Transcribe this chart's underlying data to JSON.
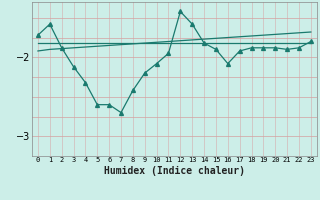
{
  "xlabel": "Humidex (Indice chaleur)",
  "x": [
    0,
    1,
    2,
    3,
    4,
    5,
    6,
    7,
    8,
    9,
    10,
    11,
    12,
    13,
    14,
    15,
    16,
    17,
    18,
    19,
    20,
    21,
    22,
    23
  ],
  "y_line1": [
    -1.72,
    -1.58,
    -1.88,
    -2.12,
    -2.32,
    -2.6,
    -2.6,
    -2.7,
    -2.42,
    -2.2,
    -2.08,
    -1.95,
    -1.42,
    -1.58,
    -1.82,
    -1.9,
    -2.08,
    -1.92,
    -1.88,
    -1.88,
    -1.88,
    -1.9,
    -1.88,
    -1.8
  ],
  "y_line2": [
    -1.82,
    -1.82,
    -1.82,
    -1.82,
    -1.82,
    -1.82,
    -1.82,
    -1.82,
    -1.82,
    -1.82,
    -1.82,
    -1.82,
    -1.82,
    -1.82,
    -1.82,
    -1.82,
    -1.82,
    -1.82,
    -1.82,
    -1.82,
    -1.82,
    -1.82,
    -1.82,
    -1.82
  ],
  "y_line3": [
    -1.92,
    -1.9,
    -1.89,
    -1.88,
    -1.87,
    -1.86,
    -1.85,
    -1.84,
    -1.83,
    -1.82,
    -1.81,
    -1.8,
    -1.79,
    -1.78,
    -1.77,
    -1.76,
    -1.75,
    -1.74,
    -1.73,
    -1.72,
    -1.71,
    -1.7,
    -1.69,
    -1.68
  ],
  "bg_color": "#cceee8",
  "line_color": "#1a7a6e",
  "grid_color_v": "#d4b8b8",
  "grid_color_h": "#d4a0a0",
  "ylim": [
    -3.25,
    -1.3
  ],
  "xlim": [
    -0.5,
    23.5
  ],
  "yticks": [
    -3,
    -2
  ],
  "xticks": [
    0,
    1,
    2,
    3,
    4,
    5,
    6,
    7,
    8,
    9,
    10,
    11,
    12,
    13,
    14,
    15,
    16,
    17,
    18,
    19,
    20,
    21,
    22,
    23
  ]
}
